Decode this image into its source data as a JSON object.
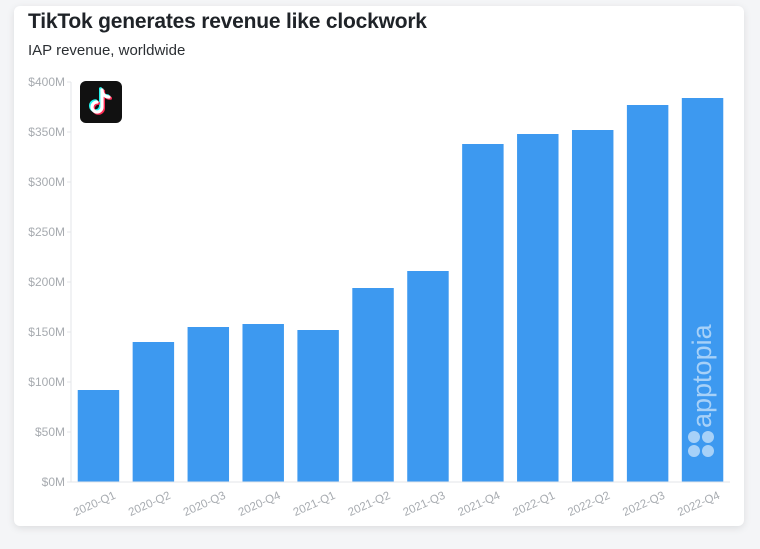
{
  "header": {
    "title": "TikTok generates revenue like clockwork",
    "subtitle": "IAP revenue, worldwide"
  },
  "brand": {
    "logo": "tiktok-logo-icon",
    "watermark": "apptopia",
    "bar_color": "#3d99f0"
  },
  "chart_data": {
    "type": "bar",
    "title": "TikTok generates revenue like clockwork",
    "subtitle": "IAP revenue, worldwide",
    "categories": [
      "2020-Q1",
      "2020-Q2",
      "2020-Q3",
      "2020-Q4",
      "2021-Q1",
      "2021-Q2",
      "2021-Q3",
      "2021-Q4",
      "2022-Q1",
      "2022-Q2",
      "2022-Q3",
      "2022-Q4"
    ],
    "values": [
      92,
      140,
      155,
      158,
      152,
      194,
      211,
      338,
      348,
      352,
      377,
      384
    ],
    "unit": "USD millions",
    "ylim": [
      0,
      400
    ],
    "yticks": [
      0,
      50,
      100,
      150,
      200,
      250,
      300,
      350,
      400
    ],
    "ytick_labels": [
      "$0M",
      "$50M",
      "$100M",
      "$150M",
      "$200M",
      "$250M",
      "$300M",
      "$350M",
      "$400M"
    ],
    "xlabel": "",
    "ylabel": "",
    "grid": false,
    "legend": "none"
  }
}
